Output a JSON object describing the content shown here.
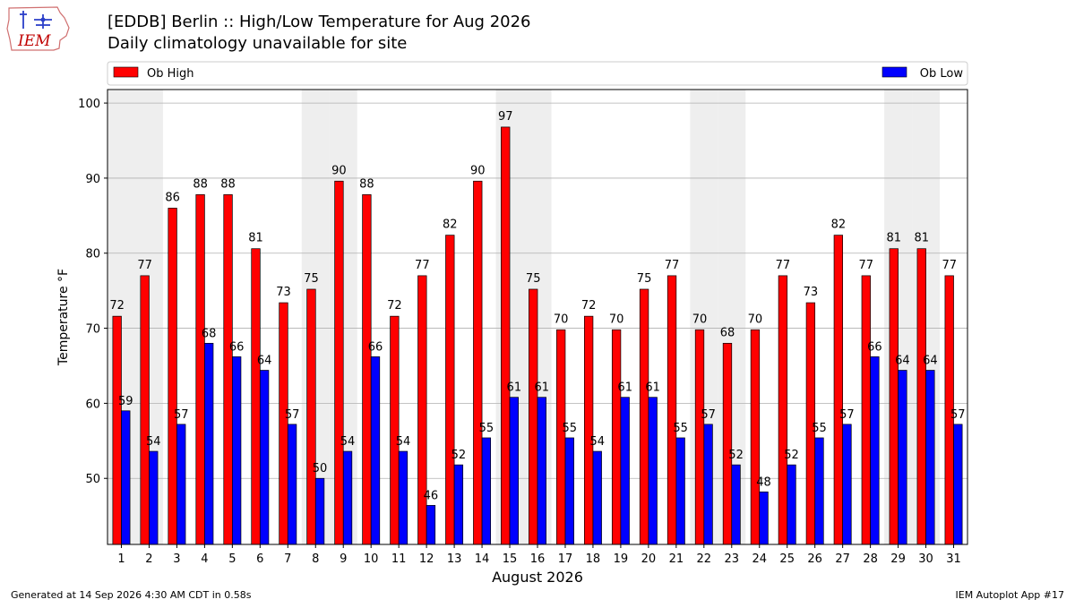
{
  "header": {
    "title": "[EDDB] Berlin :: High/Low Temperature for Aug 2026",
    "subtitle": "Daily climatology unavailable for site",
    "logo_text": "IEM"
  },
  "footer": {
    "generated": "Generated at 14 Sep 2026 4:30 AM CDT in 0.58s",
    "app": "IEM Autoplot App #17"
  },
  "colors": {
    "high": "#ff0000",
    "low": "#0000ff",
    "weekend_band": "#eeeeee",
    "grid": "#b0b0b0"
  },
  "chart_data": {
    "type": "bar",
    "title": "[EDDB] Berlin :: High/Low Temperature for Aug 2026",
    "subtitle": "Daily climatology unavailable for site",
    "xlabel": "August 2026",
    "ylabel": "Temperature °F",
    "categories": [
      "1",
      "2",
      "3",
      "4",
      "5",
      "6",
      "7",
      "8",
      "9",
      "10",
      "11",
      "12",
      "13",
      "14",
      "15",
      "16",
      "17",
      "18",
      "19",
      "20",
      "21",
      "22",
      "23",
      "24",
      "25",
      "26",
      "27",
      "28",
      "29",
      "30",
      "31"
    ],
    "series": [
      {
        "name": "Ob High",
        "color": "#ff0000",
        "values": [
          71.6,
          77.0,
          86.0,
          87.8,
          87.8,
          80.6,
          73.4,
          75.2,
          89.6,
          87.8,
          71.6,
          77.0,
          82.4,
          89.6,
          96.8,
          75.2,
          69.8,
          71.6,
          69.8,
          75.2,
          77.0,
          69.8,
          68.0,
          69.8,
          77.0,
          73.4,
          82.4,
          77.0,
          80.6,
          80.6,
          77.0
        ],
        "labels": [
          "72",
          "77",
          "86",
          "88",
          "88",
          "81",
          "73",
          "75",
          "90",
          "88",
          "72",
          "77",
          "82",
          "90",
          "97",
          "75",
          "70",
          "72",
          "70",
          "75",
          "77",
          "70",
          "68",
          "70",
          "77",
          "73",
          "82",
          "77",
          "81",
          "81",
          "77"
        ]
      },
      {
        "name": "Ob Low",
        "color": "#0000ff",
        "values": [
          59.0,
          53.6,
          57.2,
          68.0,
          66.2,
          64.4,
          57.2,
          50.0,
          53.6,
          66.2,
          53.6,
          46.4,
          51.8,
          55.4,
          60.8,
          60.8,
          55.4,
          53.6,
          60.8,
          60.8,
          55.4,
          57.2,
          51.8,
          48.2,
          51.8,
          55.4,
          57.2,
          66.2,
          64.4,
          64.4,
          57.2
        ],
        "labels": [
          "59",
          "54",
          "57",
          "68",
          "66",
          "64",
          "57",
          "50",
          "54",
          "66",
          "54",
          "46",
          "52",
          "55",
          "61",
          "61",
          "55",
          "54",
          "61",
          "61",
          "55",
          "57",
          "52",
          "48",
          "52",
          "55",
          "57",
          "66",
          "64",
          "64",
          "57"
        ]
      }
    ],
    "weekend_days": [
      1,
      2,
      8,
      9,
      15,
      16,
      22,
      23,
      29,
      30
    ],
    "yticks": [
      50,
      60,
      70,
      80,
      90,
      100
    ],
    "ylim": [
      41.2,
      101.8
    ],
    "grid": true,
    "legend": "top"
  }
}
